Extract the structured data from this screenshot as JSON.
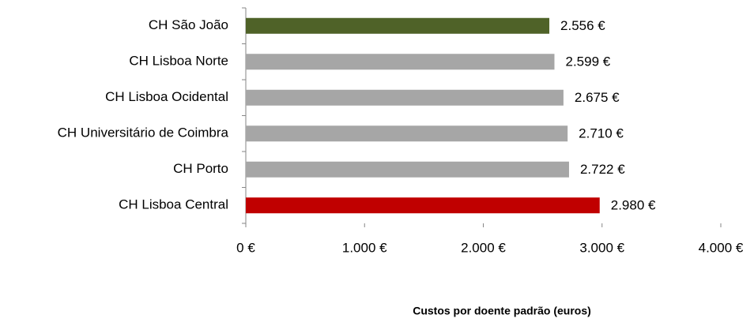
{
  "chart_data": {
    "type": "bar",
    "orientation": "horizontal",
    "categories": [
      "CH São João",
      "CH Lisboa Norte",
      "CH Lisboa Ocidental",
      "CH Universitário de Coimbra",
      "CH Porto",
      "CH Lisboa Central"
    ],
    "values": [
      2556,
      2599,
      2675,
      2710,
      2722,
      2980
    ],
    "value_labels": [
      "2.556 €",
      "2.599 €",
      "2.675 €",
      "2.710 €",
      "2.722 €",
      "2.980 €"
    ],
    "colors": [
      "#4f6228",
      "#a6a6a6",
      "#a6a6a6",
      "#a6a6a6",
      "#a6a6a6",
      "#c00000"
    ],
    "xlim": [
      0,
      4000
    ],
    "xticks": [
      {
        "value": 0,
        "label": "0 €"
      },
      {
        "value": 1000,
        "label": "1.000 €"
      },
      {
        "value": 2000,
        "label": "2.000 €"
      },
      {
        "value": 3000,
        "label": "3.000 €"
      },
      {
        "value": 4000,
        "label": "4.000 €"
      }
    ],
    "xlabel": "Custos por doente padrão (euros)",
    "grid": false
  }
}
